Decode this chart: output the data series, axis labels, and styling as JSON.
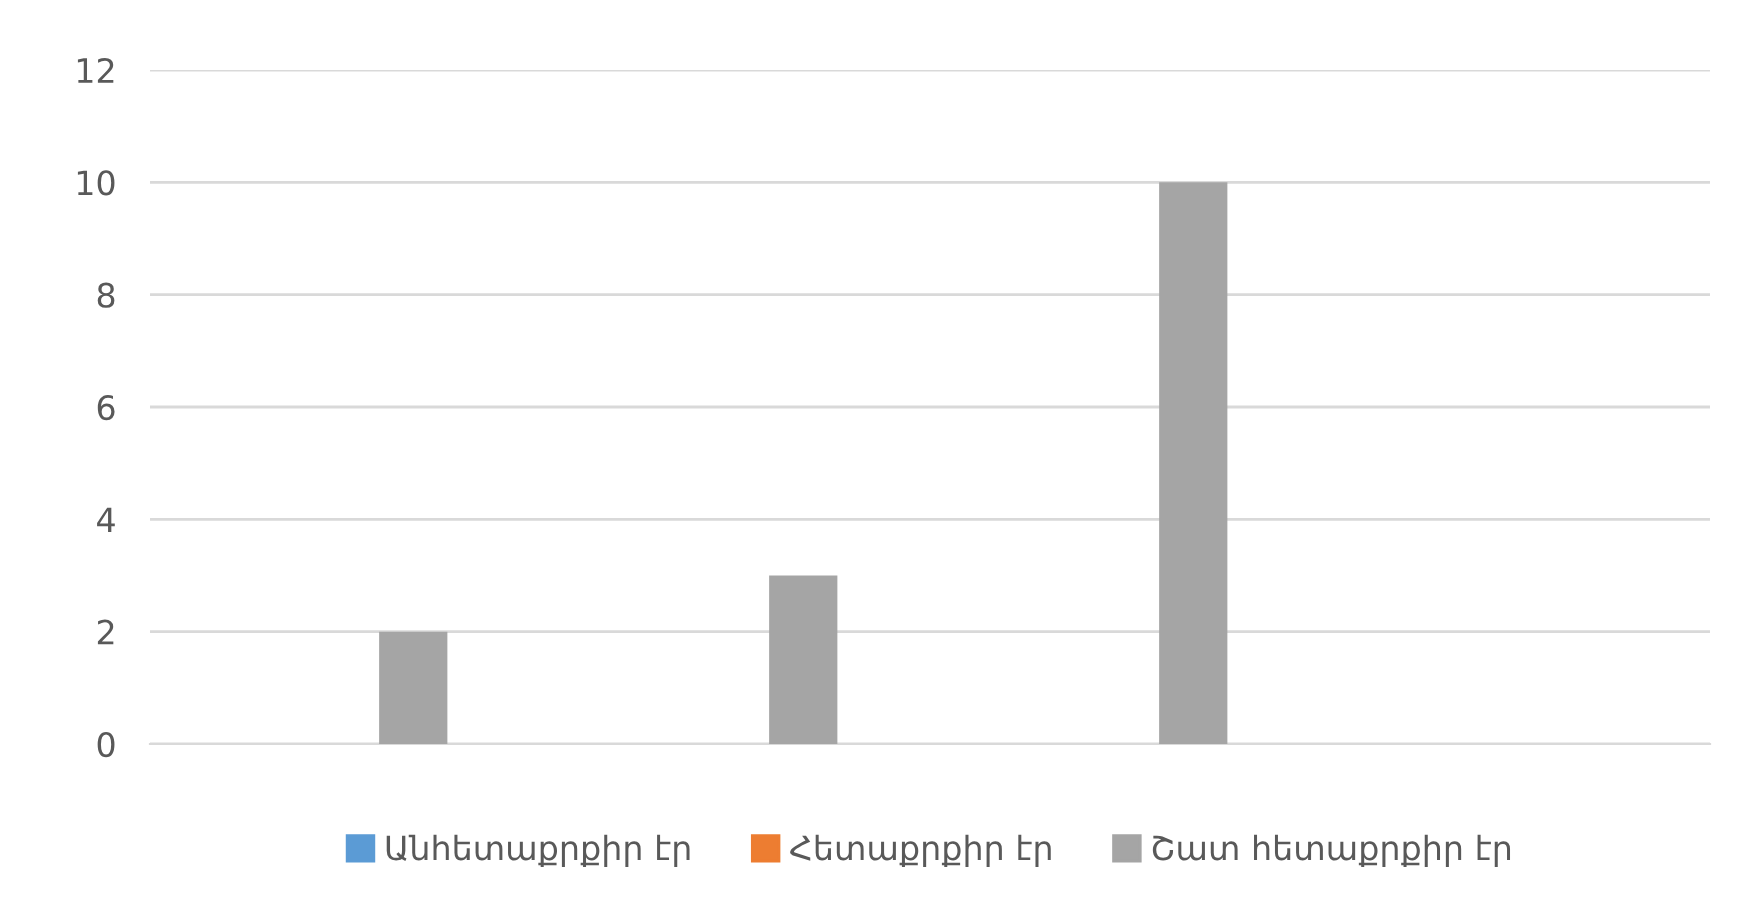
{
  "chart_data": {
    "type": "bar",
    "categories": [
      null,
      null,
      null,
      null
    ],
    "series": [
      {
        "name": "Անհետաքրքիր էր",
        "color": "#5b9bd5",
        "values": [
          null,
          null,
          null,
          null
        ]
      },
      {
        "name": "Հետաքրքիր էր",
        "color": "#ed7d31",
        "values": [
          null,
          null,
          null,
          null
        ]
      },
      {
        "name": "Շատ հետաքրքիր էր",
        "color": "#a5a5a5",
        "values": [
          2,
          3,
          10,
          null
        ]
      }
    ],
    "ylim": [
      0,
      12
    ],
    "yticks": [
      0,
      2,
      4,
      6,
      8,
      10,
      12
    ],
    "grid": "y",
    "legend": "bottom"
  }
}
